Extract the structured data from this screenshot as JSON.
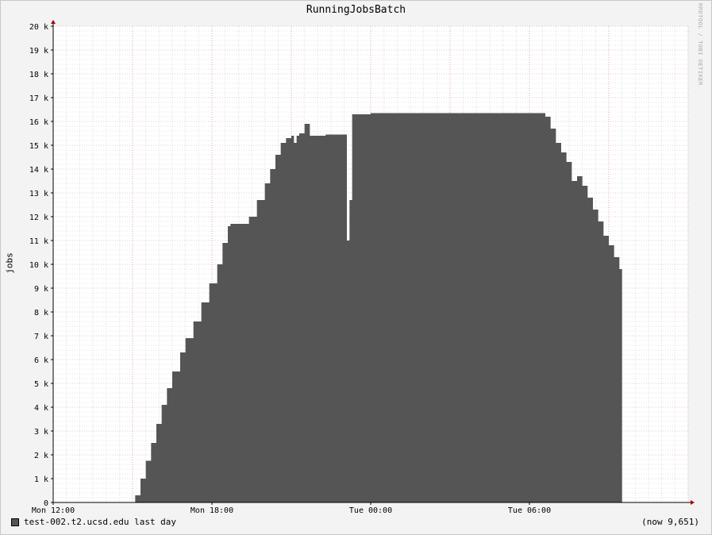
{
  "chart_data": {
    "type": "area",
    "title": "RunningJobsBatch",
    "ylabel": "jobs",
    "ylim": [
      0,
      20000
    ],
    "yticks": [
      "0",
      "1 k",
      "2 k",
      "3 k",
      "4 k",
      "5 k",
      "6 k",
      "7 k",
      "8 k",
      "9 k",
      "10 k",
      "11 k",
      "12 k",
      "13 k",
      "14 k",
      "15 k",
      "16 k",
      "17 k",
      "18 k",
      "19 k",
      "20 k"
    ],
    "xticks": [
      "Mon 12:00",
      "Mon 18:00",
      "Tue 00:00",
      "Tue 06:00"
    ],
    "xlim_hours": [
      12.0,
      36.0
    ],
    "grid": true,
    "series": [
      {
        "name": "test-002.t2.ucsd.edu last day",
        "color": "#555555",
        "points_hours_value": [
          [
            15.0,
            0
          ],
          [
            15.1,
            300
          ],
          [
            15.3,
            1000
          ],
          [
            15.5,
            1750
          ],
          [
            15.7,
            2500
          ],
          [
            15.9,
            3300
          ],
          [
            16.1,
            4100
          ],
          [
            16.3,
            4800
          ],
          [
            16.5,
            5500
          ],
          [
            16.8,
            6300
          ],
          [
            17.0,
            6900
          ],
          [
            17.3,
            7600
          ],
          [
            17.6,
            8400
          ],
          [
            17.9,
            9200
          ],
          [
            18.2,
            10000
          ],
          [
            18.4,
            10900
          ],
          [
            18.6,
            11600
          ],
          [
            18.7,
            11700
          ],
          [
            19.2,
            11700
          ],
          [
            19.4,
            12000
          ],
          [
            19.7,
            12700
          ],
          [
            20.0,
            13400
          ],
          [
            20.2,
            14000
          ],
          [
            20.4,
            14600
          ],
          [
            20.6,
            15100
          ],
          [
            20.8,
            15300
          ],
          [
            21.0,
            15400
          ],
          [
            21.1,
            15100
          ],
          [
            21.2,
            15400
          ],
          [
            21.3,
            15500
          ],
          [
            21.5,
            15900
          ],
          [
            21.7,
            15400
          ],
          [
            22.0,
            15400
          ],
          [
            22.3,
            15450
          ],
          [
            23.0,
            15450
          ],
          [
            23.1,
            11000
          ],
          [
            23.2,
            12700
          ],
          [
            23.3,
            16300
          ],
          [
            24.0,
            16350
          ],
          [
            30.0,
            16350
          ],
          [
            30.4,
            16350
          ],
          [
            30.6,
            16200
          ],
          [
            30.8,
            15700
          ],
          [
            31.0,
            15100
          ],
          [
            31.2,
            14700
          ],
          [
            31.4,
            14300
          ],
          [
            31.6,
            13500
          ],
          [
            31.8,
            13700
          ],
          [
            32.0,
            13300
          ],
          [
            32.2,
            12800
          ],
          [
            32.4,
            12300
          ],
          [
            32.6,
            11800
          ],
          [
            32.8,
            11200
          ],
          [
            33.0,
            10800
          ],
          [
            33.2,
            10300
          ],
          [
            33.4,
            9800
          ],
          [
            33.5,
            9651
          ]
        ]
      }
    ],
    "now_label": "(now 9,651)"
  },
  "watermark": "RRDTOOL / TOBI OETIKER",
  "colors": {
    "background": "#f3f3f3",
    "plot_background": "#ffffff",
    "area": "#555555",
    "major_grid": "#e08a8a",
    "minor_grid": "#c9c9c9",
    "axis": "#000000",
    "arrow": "#aa0000"
  }
}
